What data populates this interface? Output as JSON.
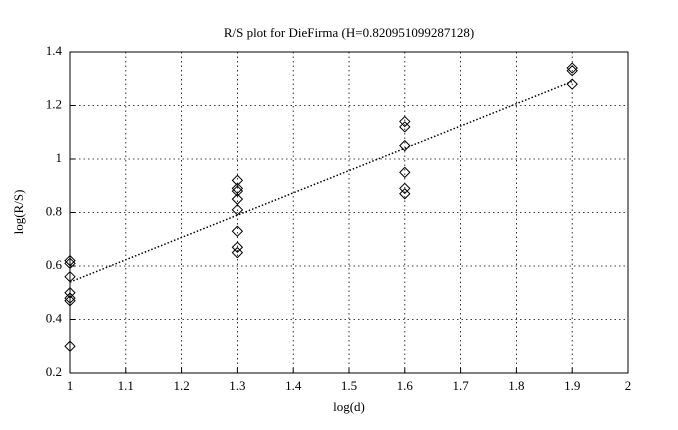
{
  "chart_data": {
    "type": "scatter",
    "title": "R/S plot for DieFirma (H=0.820951099287128)",
    "x_label": "log(d)",
    "y_label": "log(R/S)",
    "points": {
      "color": "#000000",
      "x": [
        1,
        1,
        1,
        1,
        1,
        1,
        1,
        1.3,
        1.3,
        1.3,
        1.3,
        1.3,
        1.3,
        1.3,
        1.3,
        1.6,
        1.6,
        1.6,
        1.6,
        1.6,
        1.6,
        1.9,
        1.9,
        1.9
      ],
      "y": [
        0.62,
        0.61,
        0.56,
        0.5,
        0.48,
        0.47,
        0.3,
        0.92,
        0.89,
        0.88,
        0.85,
        0.81,
        0.73,
        0.67,
        0.65,
        1.14,
        1.12,
        1.05,
        0.95,
        0.89,
        0.87,
        1.34,
        1.33,
        1.28
      ]
    },
    "fit": {
      "color": "#000000",
      "x": [
        1,
        1.9
      ],
      "y": [
        0.54,
        1.29
      ]
    },
    "xlim": [
      1,
      2
    ],
    "xticks": [
      1,
      1.1,
      1.2,
      1.3,
      1.4,
      1.5,
      1.6,
      1.7,
      1.8,
      1.9,
      2
    ],
    "ylim": [
      0.2,
      1.4
    ],
    "yticks": [
      0.2,
      0.4,
      0.6,
      0.8,
      1,
      1.2,
      1.4
    ],
    "grid": true
  }
}
